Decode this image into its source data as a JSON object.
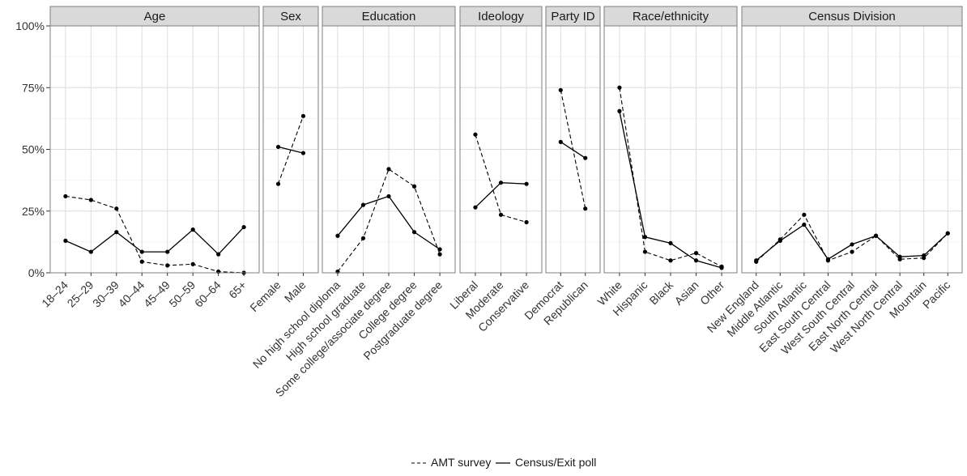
{
  "chart_data": {
    "type": "line",
    "y_ticks": [
      "0%",
      "25%",
      "50%",
      "75%",
      "100%"
    ],
    "ylim": [
      0,
      1
    ],
    "grid": true,
    "legend_position": "bottom",
    "series": [
      {
        "name": "AMT survey",
        "style": "dashed",
        "color": "#000000"
      },
      {
        "name": "Census/Exit poll",
        "style": "solid",
        "color": "#000000"
      }
    ],
    "panels": [
      {
        "title": "Age",
        "categories": [
          "18–24",
          "25–29",
          "30–39",
          "40–44",
          "45–49",
          "50–59",
          "60–64",
          "65+"
        ],
        "amt": [
          0.31,
          0.295,
          0.26,
          0.045,
          0.03,
          0.035,
          0.005,
          0.0
        ],
        "census": [
          0.13,
          0.085,
          0.165,
          0.085,
          0.085,
          0.175,
          0.075,
          0.185
        ]
      },
      {
        "title": "Sex",
        "categories": [
          "Female",
          "Male"
        ],
        "amt": [
          0.36,
          0.635
        ],
        "census": [
          0.51,
          0.485
        ]
      },
      {
        "title": "Education",
        "categories": [
          "No high school diploma",
          "High school graduate",
          "Some college/associate degree",
          "College degree",
          "Postgraduate degree"
        ],
        "amt": [
          0.005,
          0.14,
          0.42,
          0.35,
          0.075
        ],
        "census": [
          0.15,
          0.275,
          0.31,
          0.165,
          0.095
        ]
      },
      {
        "title": "Ideology",
        "categories": [
          "Liberal",
          "Moderate",
          "Conservative"
        ],
        "amt": [
          0.56,
          0.235,
          0.205
        ],
        "census": [
          0.265,
          0.365,
          0.36
        ]
      },
      {
        "title": "Party ID",
        "categories": [
          "Democrat",
          "Republican"
        ],
        "amt": [
          0.74,
          0.26
        ],
        "census": [
          0.53,
          0.465
        ]
      },
      {
        "title": "Race/ethnicity",
        "categories": [
          "White",
          "Hispanic",
          "Black",
          "Asian",
          "Other"
        ],
        "amt": [
          0.75,
          0.085,
          0.05,
          0.08,
          0.025
        ],
        "census": [
          0.655,
          0.145,
          0.12,
          0.05,
          0.02
        ]
      },
      {
        "title": "Census Division",
        "categories": [
          "New England",
          "Middle Atlantic",
          "South Atlantic",
          "East South Central",
          "West South Central",
          "East North Central",
          "West North Central",
          "Mountain",
          "Pacific"
        ],
        "amt": [
          0.045,
          0.135,
          0.235,
          0.05,
          0.085,
          0.15,
          0.055,
          0.06,
          0.16
        ],
        "census": [
          0.05,
          0.13,
          0.195,
          0.055,
          0.115,
          0.15,
          0.065,
          0.07,
          0.16
        ]
      }
    ]
  }
}
